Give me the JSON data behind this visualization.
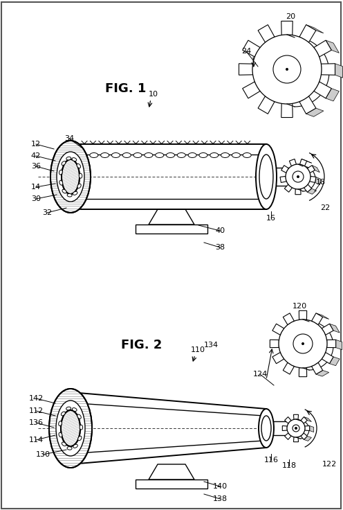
{
  "bg_color": "#ffffff",
  "line_color": "#000000",
  "fig1_title": "FIG. 1",
  "fig2_title": "FIG. 2",
  "border_color": "#888888"
}
